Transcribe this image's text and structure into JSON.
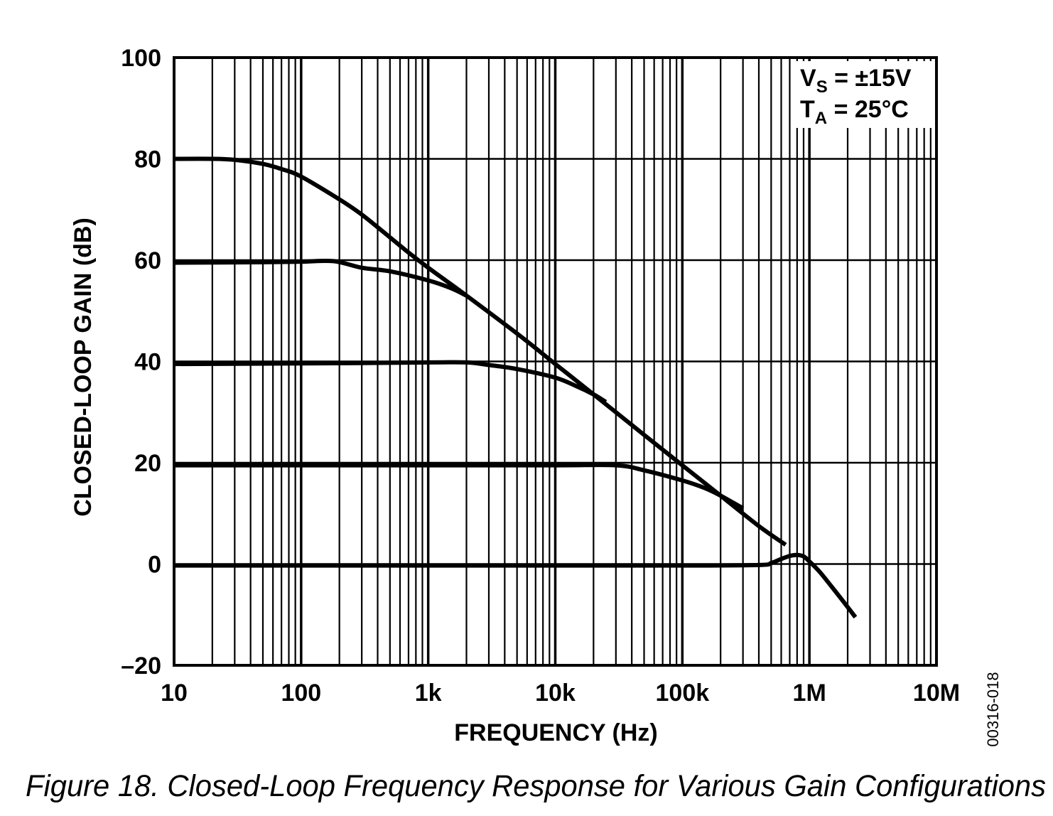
{
  "chart_data": {
    "type": "line",
    "xlabel": "FREQUENCY (Hz)",
    "ylabel": "CLOSED-LOOP GAIN (dB)",
    "x_scale": "log",
    "xlim": [
      10,
      10000000
    ],
    "ylim": [
      -20,
      100
    ],
    "x_ticks": [
      {
        "value": 10,
        "label": "10"
      },
      {
        "value": 100,
        "label": "100"
      },
      {
        "value": 1000,
        "label": "1k"
      },
      {
        "value": 10000,
        "label": "10k"
      },
      {
        "value": 100000,
        "label": "100k"
      },
      {
        "value": 1000000,
        "label": "1M"
      },
      {
        "value": 10000000,
        "label": "10M"
      }
    ],
    "y_ticks": [
      {
        "value": 100,
        "label": "100"
      },
      {
        "value": 80,
        "label": "80"
      },
      {
        "value": 60,
        "label": "60"
      },
      {
        "value": 40,
        "label": "40"
      },
      {
        "value": 20,
        "label": "20"
      },
      {
        "value": 0,
        "label": "0"
      },
      {
        "value": -20,
        "label": "–20"
      }
    ],
    "grid": true,
    "annotation": {
      "line1_main": "V",
      "line1_sub": "S",
      "line1_rest": " = ±15V",
      "line2_main": "T",
      "line2_sub": "A",
      "line2_rest": " = 25°C",
      "position": "top-right"
    },
    "series": [
      {
        "x": [
          10,
          20,
          30,
          50,
          70,
          100,
          200,
          300,
          500,
          700,
          1000,
          2000,
          5000,
          10000,
          20000,
          50000,
          100000,
          200000,
          400000,
          650000
        ],
        "y": [
          80,
          80,
          79.8,
          79,
          78,
          76.5,
          72,
          69,
          64.5,
          61.5,
          58.5,
          53,
          45.5,
          39.5,
          33.5,
          25.5,
          19.5,
          13.5,
          7.5,
          3.8
        ]
      },
      {
        "x": [
          10,
          50,
          100,
          180,
          300,
          500,
          1000,
          1500,
          2000
        ],
        "y": [
          59.5,
          59.6,
          59.7,
          59.8,
          58.5,
          57.8,
          56,
          54.5,
          53
        ]
      },
      {
        "x": [
          10,
          100,
          1000,
          2000,
          3000,
          5000,
          10000,
          15000,
          20000,
          25000
        ],
        "y": [
          39.5,
          39.6,
          39.8,
          39.8,
          39.3,
          38.5,
          36.8,
          35,
          33.5,
          32
        ]
      },
      {
        "x": [
          10,
          100,
          1000,
          10000,
          30000,
          50000,
          100000,
          150000,
          200000,
          300000
        ],
        "y": [
          19.5,
          19.5,
          19.5,
          19.5,
          19.5,
          18.5,
          16.5,
          15,
          13.5,
          11
        ]
      },
      {
        "x": [
          10,
          100,
          1000,
          10000,
          100000,
          400000,
          500000,
          600000,
          700000,
          800000,
          900000,
          1000000,
          1200000,
          1500000,
          2000000,
          2300000
        ],
        "y": [
          -0.3,
          -0.3,
          -0.3,
          -0.3,
          -0.3,
          -0.2,
          0.2,
          1,
          1.6,
          1.8,
          1.5,
          0.5,
          -1.5,
          -4.5,
          -8.5,
          -10.5
        ]
      }
    ]
  },
  "side_code": "00316-018",
  "caption": "Figure 18. Closed-Loop Frequency Response for Various Gain Configurations"
}
